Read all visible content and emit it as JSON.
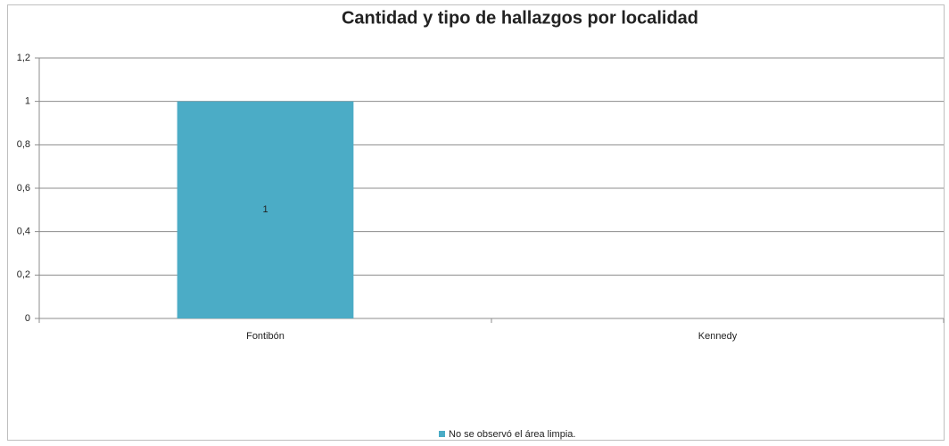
{
  "chart_data": {
    "type": "bar",
    "title": "Cantidad y tipo de hallazgos por localidad",
    "categories": [
      "Fontibón",
      "Kennedy"
    ],
    "series": [
      {
        "name": "No se observó el área limpia.",
        "color": "#4bacc6",
        "values": [
          1,
          null
        ]
      }
    ],
    "ylim": [
      0,
      1.2
    ],
    "yticks": [
      0,
      {
        "value": 0.2,
        "label": "0,2"
      },
      {
        "value": 0.4,
        "label": "0,4"
      },
      {
        "value": 0.6,
        "label": "0,6"
      },
      {
        "value": 0.8,
        "label": "0,8"
      },
      1,
      {
        "value": 1.2,
        "label": "1,2"
      }
    ],
    "grid": true,
    "legend": "bottom"
  }
}
